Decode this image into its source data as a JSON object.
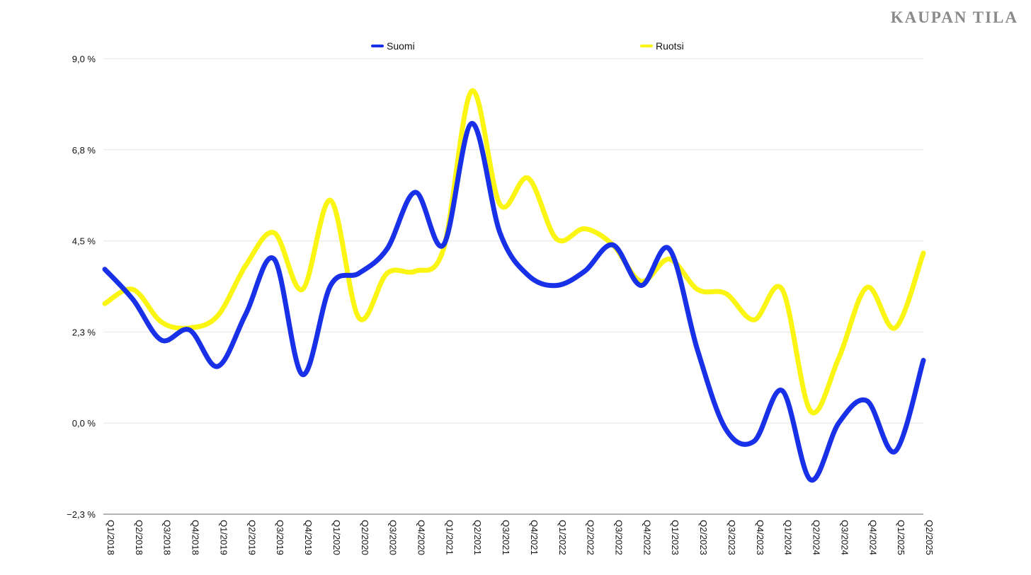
{
  "brand": "KAUPAN TILA",
  "colors": {
    "suomi": "#1730e8",
    "ruotsi": "#fbf514"
  },
  "chart_data": {
    "type": "line",
    "categories": [
      "Q1/2018",
      "Q2/2018",
      "Q3/2018",
      "Q4/2018",
      "Q1/2019",
      "Q2/2019",
      "Q3/2019",
      "Q4/2019",
      "Q1/2020",
      "Q2/2020",
      "Q3/2020",
      "Q4/2020",
      "Q1/2021",
      "Q2/2021",
      "Q3/2021",
      "Q4/2021",
      "Q1/2022",
      "Q2/2022",
      "Q3/2022",
      "Q4/2022",
      "Q1/2023",
      "Q2/2023",
      "Q3/2023",
      "Q4/2023",
      "Q1/2024",
      "Q2/2024",
      "Q3/2024",
      "Q4/2024",
      "Q1/2025",
      "Q2/2025"
    ],
    "series": [
      {
        "name": "Suomi",
        "color": "#1730e8",
        "values": [
          3.8,
          3.05,
          2.05,
          2.3,
          1.4,
          2.7,
          4.05,
          1.2,
          3.4,
          3.7,
          4.3,
          5.7,
          4.4,
          7.4,
          4.7,
          3.65,
          3.4,
          3.75,
          4.4,
          3.4,
          4.3,
          1.8,
          -0.15,
          -0.45,
          0.8,
          -1.4,
          0.0,
          0.55,
          -0.7,
          1.55
        ]
      },
      {
        "name": "Ruotsi",
        "color": "#fbf514",
        "values": [
          2.95,
          3.3,
          2.5,
          2.35,
          2.65,
          3.9,
          4.7,
          3.3,
          5.5,
          2.6,
          3.7,
          3.75,
          4.3,
          8.2,
          5.4,
          6.05,
          4.55,
          4.8,
          4.4,
          3.5,
          4.05,
          3.3,
          3.2,
          2.55,
          3.3,
          0.3,
          1.6,
          3.35,
          2.35,
          4.2
        ]
      }
    ],
    "yticks": [
      "9,0 %",
      "6,8 %",
      "4,5 %",
      "2,3 %",
      "0,0 %",
      "−2,3 %"
    ],
    "ylim": [
      -2.25,
      9.0
    ],
    "grid": true,
    "legend": "top-center"
  }
}
